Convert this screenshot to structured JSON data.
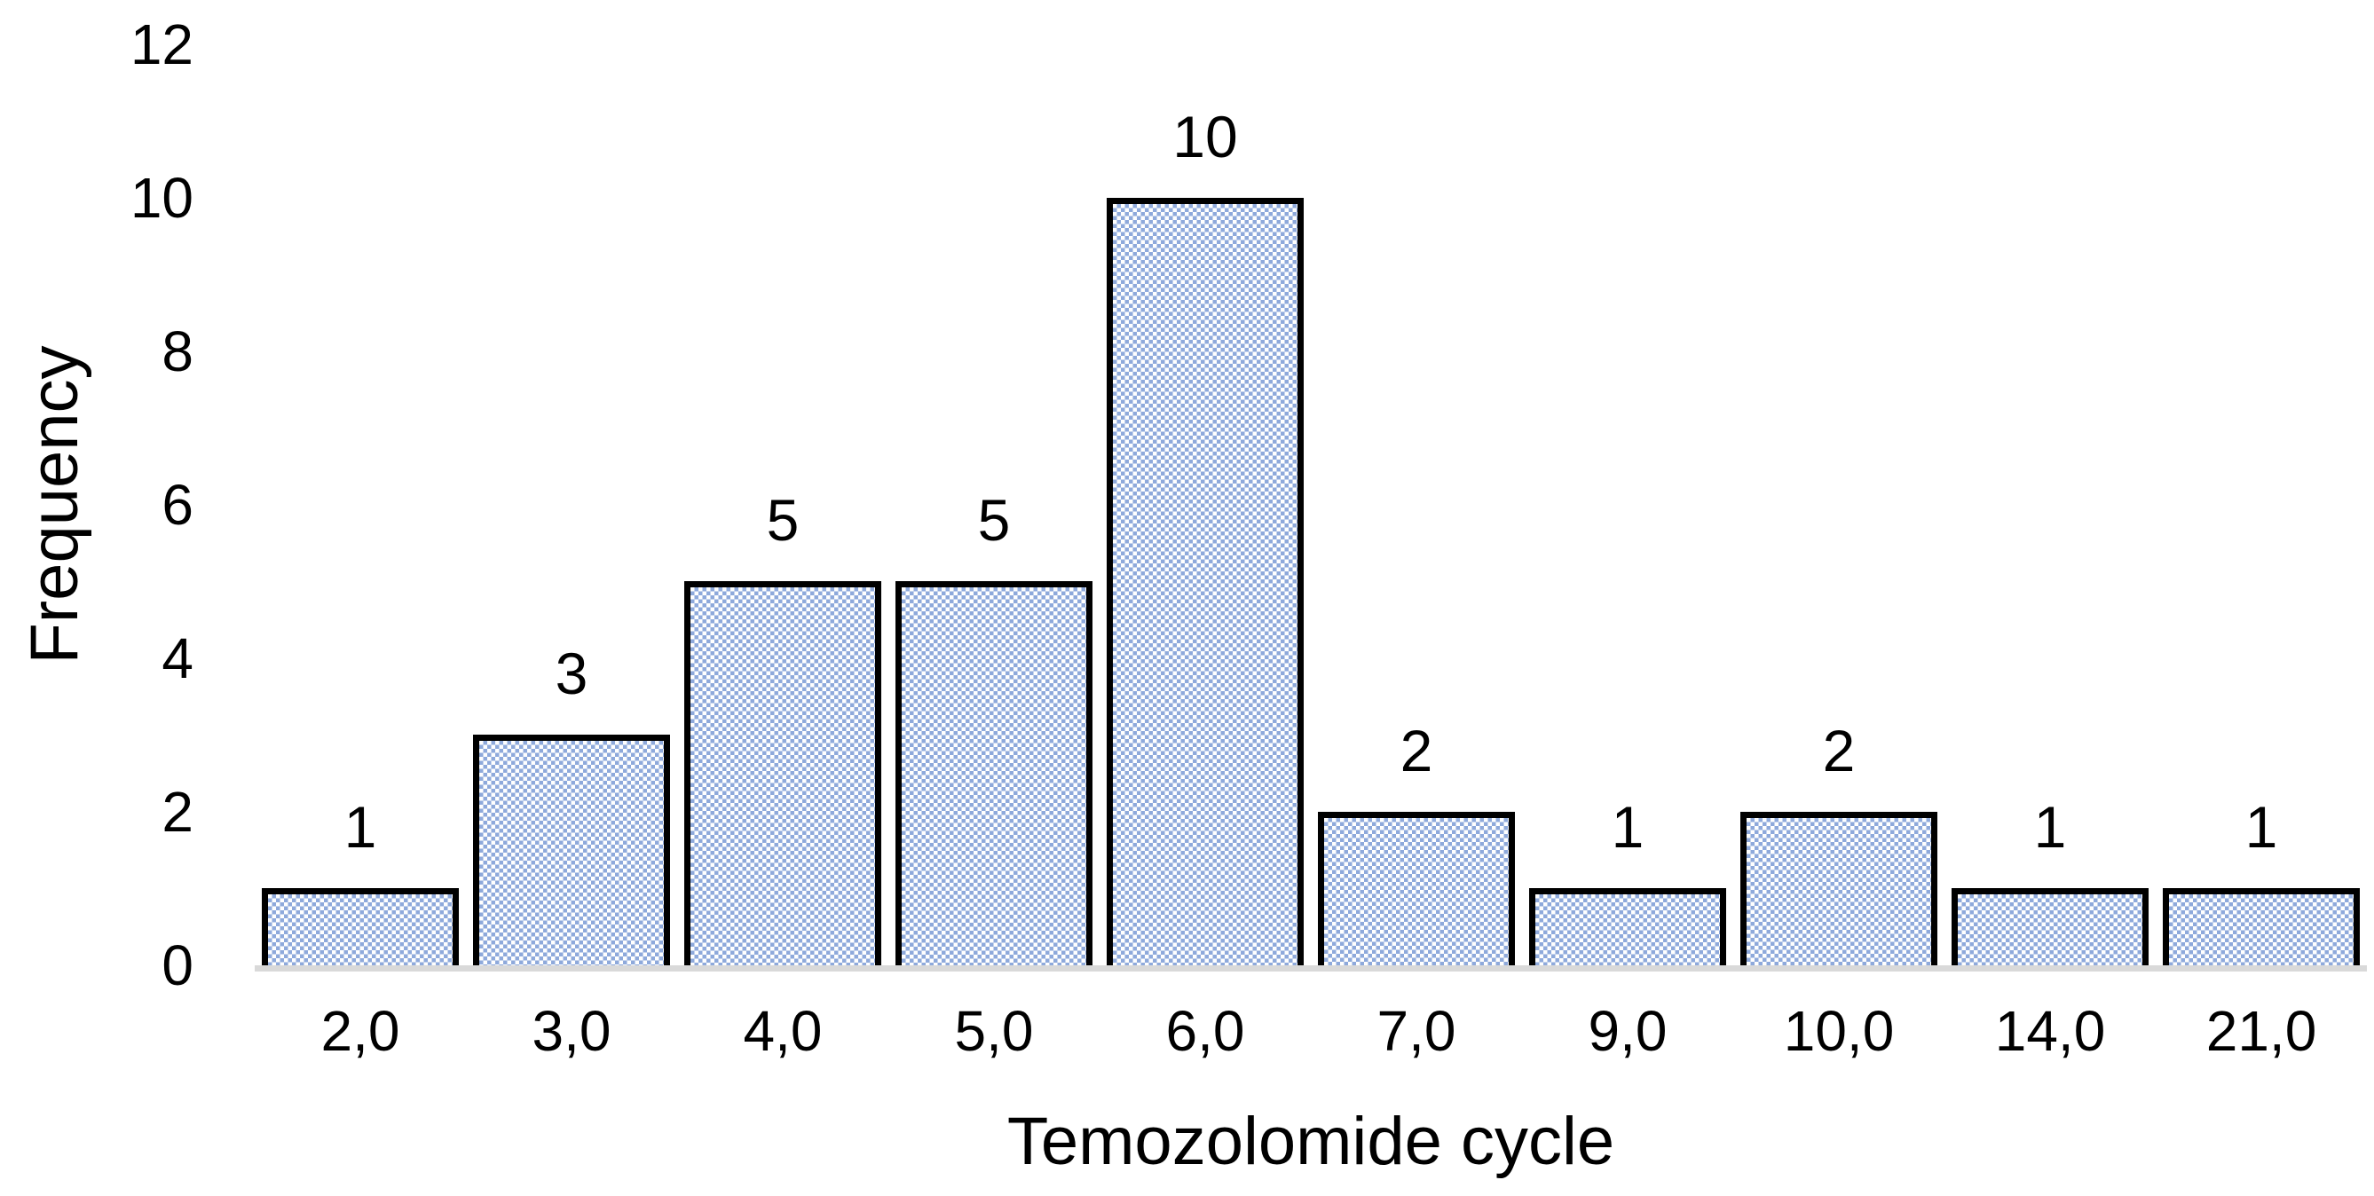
{
  "chart_data": {
    "type": "bar",
    "title": "",
    "xlabel": "Temozolomide cycle",
    "ylabel": "Frequency",
    "categories": [
      "2,0",
      "3,0",
      "4,0",
      "5,0",
      "6,0",
      "7,0",
      "9,0",
      "10,0",
      "14,0",
      "21,0"
    ],
    "values": [
      1,
      3,
      5,
      5,
      10,
      2,
      1,
      2,
      1,
      1
    ],
    "data_labels": [
      "1",
      "3",
      "5",
      "5",
      "10",
      "2",
      "1",
      "2",
      "1",
      "1"
    ],
    "y_ticks": [
      0,
      2,
      4,
      6,
      8,
      10,
      12
    ],
    "ylim": [
      0,
      12
    ],
    "grid": false,
    "legend": false,
    "bar_fill_style": "checker-pattern",
    "colors": {
      "bar_pattern": "#8EA9DB",
      "bar_border": "#000000",
      "axis_line": "#D9D9D9",
      "text": "#000000",
      "background": "#FFFFFF"
    }
  }
}
